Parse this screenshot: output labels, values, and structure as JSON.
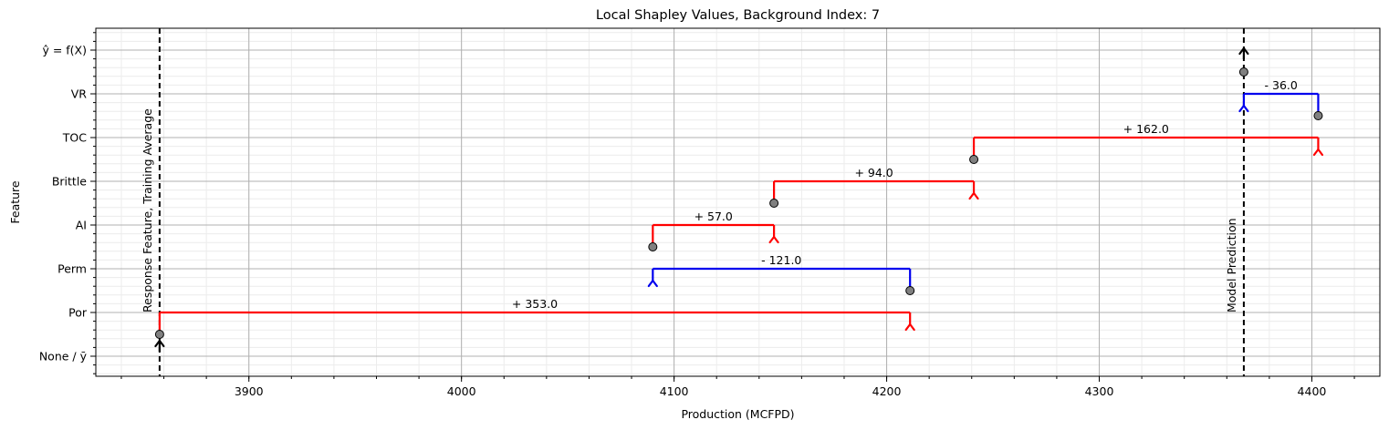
{
  "chart_data": {
    "type": "line",
    "title": "Local Shapley Values, Background Index: 7",
    "xlabel": "Production (MCFPD)",
    "ylabel": "Feature",
    "xlim": [
      3828,
      4432
    ],
    "x_major_ticks": [
      3900,
      4000,
      4100,
      4200,
      4300,
      4400
    ],
    "x_minor_step": 20,
    "y_categories": [
      "None / ȳ",
      "Por",
      "Perm",
      "AI",
      "Brittle",
      "TOC",
      "VR",
      "ŷ = f(X)"
    ],
    "grid": true,
    "baseline": 3858,
    "prediction": 4368,
    "steps": [
      {
        "feature": "Por",
        "start": 3858,
        "end": 4211,
        "contribution": 353.0,
        "label": "+ 353.0",
        "color": "#ff0000"
      },
      {
        "feature": "Perm",
        "start": 4211,
        "end": 4090,
        "contribution": -121.0,
        "label": "- 121.0",
        "color": "#0000ee"
      },
      {
        "feature": "AI",
        "start": 4090,
        "end": 4147,
        "contribution": 57.0,
        "label": "+ 57.0",
        "color": "#ff0000"
      },
      {
        "feature": "Brittle",
        "start": 4147,
        "end": 4241,
        "contribution": 94.0,
        "label": "+ 94.0",
        "color": "#ff0000"
      },
      {
        "feature": "TOC",
        "start": 4241,
        "end": 4403,
        "contribution": 162.0,
        "label": "+ 162.0",
        "color": "#ff0000"
      },
      {
        "feature": "VR",
        "start": 4403,
        "end": 4368,
        "contribution": -36.0,
        "label": "- 36.0",
        "color": "#0000ee"
      }
    ],
    "vertical_lines": [
      {
        "x": 3858,
        "label": "Response Feature, Training Average"
      },
      {
        "x": 4368,
        "label": "Model Prediction"
      }
    ]
  }
}
